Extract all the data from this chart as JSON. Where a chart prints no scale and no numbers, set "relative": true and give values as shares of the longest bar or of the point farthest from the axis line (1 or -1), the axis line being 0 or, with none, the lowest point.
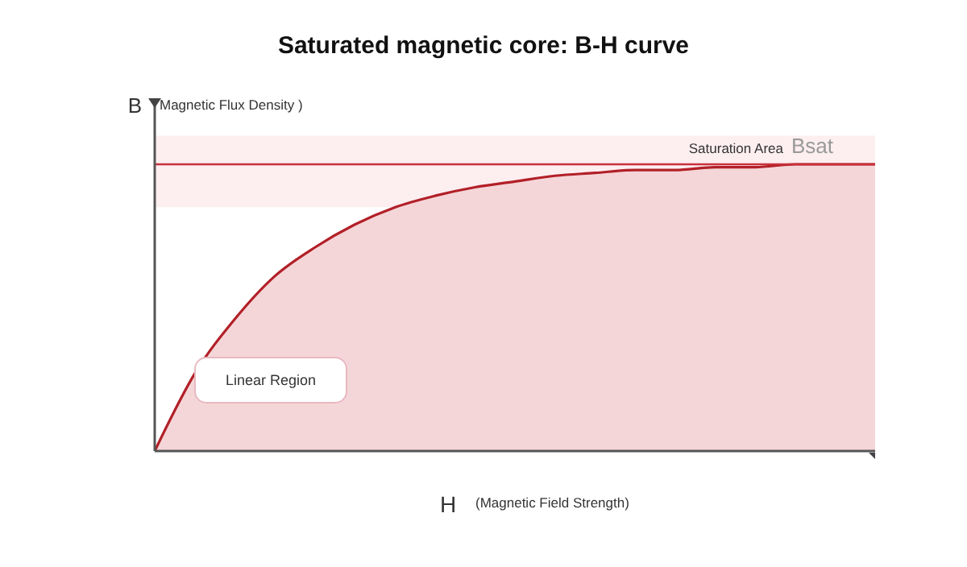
{
  "chart_data": {
    "type": "area",
    "title": "Saturated magnetic core: B-H curve",
    "xlabel": "H",
    "ylabel": "B",
    "relative": true,
    "categories": [
      null,
      null,
      null,
      null,
      null,
      null,
      null,
      null,
      null,
      null,
      null,
      null,
      null,
      null,
      null,
      null,
      null,
      null,
      null
    ],
    "series": [
      {
        "color": "#b22028",
        "values": [
          0,
          0.27,
          0.46,
          0.61,
          0.71,
          0.79,
          0.85,
          0.89,
          0.92,
          0.94,
          0.96,
          0.97,
          0.98,
          0.98,
          0.99,
          0.99,
          1,
          1,
          1
        ]
      }
    ],
    "ref_lines": [
      {
        "axis": "y",
        "value": 1,
        "label": "Bsat",
        "color": "#c8303a"
      }
    ],
    "bands": [
      {
        "axis": "y",
        "from": 0.85,
        "to": 1.1,
        "label": "Saturation Area",
        "color": "#fdeef0"
      }
    ],
    "annotations": [
      "Magnetic Flux Density )",
      "(Magnetic Field Strength)",
      "Linear Region"
    ]
  }
}
